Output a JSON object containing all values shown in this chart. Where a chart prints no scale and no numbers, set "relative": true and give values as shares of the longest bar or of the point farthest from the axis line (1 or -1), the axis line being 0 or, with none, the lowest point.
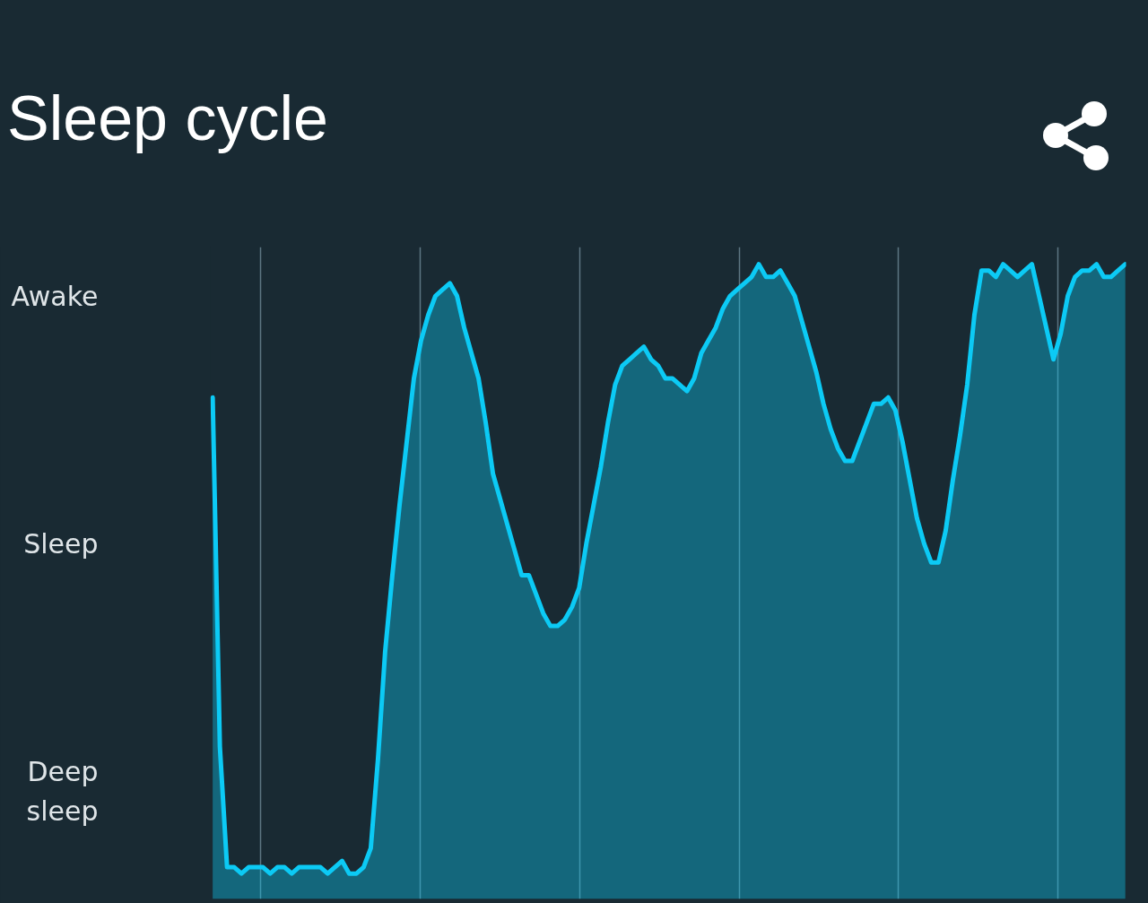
{
  "chart_data": {
    "type": "area",
    "title": "Sleep cycle",
    "color": "#0ccaf5",
    "relative": true,
    "categories": [
      null,
      null,
      null,
      null,
      null,
      null,
      null,
      null,
      null,
      null,
      null,
      null,
      null,
      null,
      null,
      null,
      null,
      null,
      null,
      null,
      null,
      null,
      null,
      null,
      null,
      null,
      null,
      null,
      null,
      null,
      null,
      null,
      null,
      null,
      null,
      null,
      null,
      null,
      null,
      null,
      null,
      null,
      null,
      null,
      null,
      null,
      null,
      null,
      null,
      null,
      null,
      null,
      null,
      null,
      null,
      null,
      null,
      null,
      null,
      null,
      null,
      null,
      null,
      null,
      null,
      null,
      null,
      null,
      null,
      null,
      null,
      null,
      null,
      null,
      null,
      null,
      null,
      null,
      null,
      null,
      null,
      null,
      null,
      null,
      null,
      null,
      null,
      null,
      null,
      null,
      null,
      null,
      null,
      null,
      null,
      null,
      null,
      null,
      null,
      null,
      null,
      null,
      null,
      null,
      null,
      null,
      null,
      null,
      null,
      null,
      null,
      null,
      null,
      null,
      null,
      null,
      null,
      null,
      null,
      null,
      null,
      null,
      null,
      null,
      null,
      null,
      null,
      null
    ],
    "values": [
      0.79,
      0.24,
      0.05,
      0.05,
      0.04,
      0.05,
      0.05,
      0.05,
      0.04,
      0.05,
      0.05,
      0.04,
      0.05,
      0.05,
      0.05,
      0.05,
      0.04,
      0.05,
      0.06,
      0.04,
      0.04,
      0.05,
      0.08,
      0.22,
      0.39,
      0.51,
      0.62,
      0.72,
      0.82,
      0.88,
      0.92,
      0.95,
      0.96,
      0.97,
      0.95,
      0.9,
      0.86,
      0.82,
      0.75,
      0.67,
      0.63,
      0.59,
      0.55,
      0.51,
      0.51,
      0.48,
      0.45,
      0.43,
      0.43,
      0.44,
      0.46,
      0.49,
      0.56,
      0.62,
      0.68,
      0.75,
      0.81,
      0.84,
      0.85,
      0.86,
      0.87,
      0.85,
      0.84,
      0.82,
      0.82,
      0.81,
      0.8,
      0.82,
      0.86,
      0.88,
      0.9,
      0.93,
      0.95,
      0.96,
      0.97,
      0.98,
      1.0,
      0.98,
      0.98,
      0.99,
      0.97,
      0.95,
      0.91,
      0.87,
      0.83,
      0.78,
      0.74,
      0.71,
      0.69,
      0.69,
      0.72,
      0.75,
      0.78,
      0.78,
      0.79,
      0.77,
      0.72,
      0.66,
      0.6,
      0.56,
      0.53,
      0.53,
      0.58,
      0.66,
      0.73,
      0.81,
      0.92,
      0.99,
      0.99,
      0.98,
      1.0,
      0.99,
      0.98,
      0.99,
      1.0,
      0.95,
      0.9,
      0.85,
      0.89,
      0.95,
      0.98,
      0.99,
      0.99,
      1.0,
      0.98,
      0.98,
      0.99,
      1
    ],
    "annotations": [
      "Awake",
      "Sleep",
      "Deep\nsleep"
    ],
    "grid": "x",
    "tick_labels": false
  }
}
